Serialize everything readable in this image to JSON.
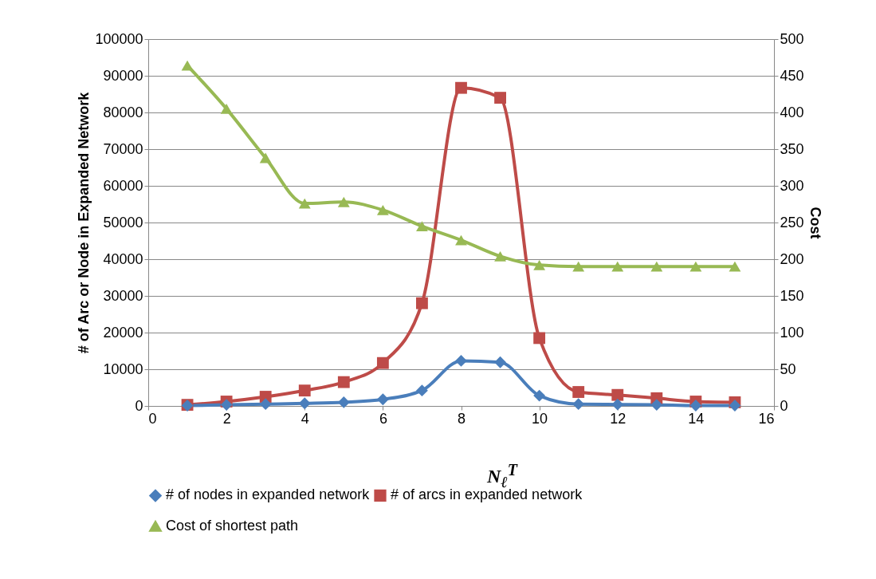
{
  "chart_data": {
    "type": "line",
    "xlabel": "N$_{ℓ}$$^{T}$",
    "ylabel": "# of Arc or Node in Expanded Network",
    "y2label": "Cost",
    "x": [
      1,
      2,
      3,
      4,
      5,
      6,
      7,
      8,
      9,
      10,
      11,
      12,
      13,
      14,
      15
    ],
    "xlim": [
      0,
      16
    ],
    "xticks": [
      0,
      2,
      4,
      6,
      8,
      10,
      12,
      14,
      16
    ],
    "ylim": [
      0,
      100000
    ],
    "yticks": [
      0,
      10000,
      20000,
      30000,
      40000,
      50000,
      60000,
      70000,
      80000,
      90000,
      100000
    ],
    "y2lim": [
      0,
      500
    ],
    "y2ticks": [
      0,
      50,
      100,
      150,
      200,
      250,
      300,
      350,
      400,
      450,
      500
    ],
    "grid": "y",
    "legend": "bottom",
    "series": [
      {
        "name": "# of nodes in expanded network",
        "color": "#4a7ebb",
        "marker": "diamond",
        "values": [
          100,
          300,
          500,
          700,
          1000,
          1800,
          4200,
          12300,
          11900,
          2800,
          500,
          400,
          300,
          100,
          100
        ]
      },
      {
        "name": "# of arcs in expanded network",
        "color": "#be4b48",
        "marker": "square",
        "values": [
          300,
          1200,
          2500,
          4200,
          6500,
          11700,
          28000,
          86700,
          84000,
          18500,
          3800,
          3000,
          2100,
          1200,
          1000
        ]
      },
      {
        "name": "Cost of shortest path",
        "color": "#98b954",
        "marker": "triangle",
        "axis": "y2",
        "values": [
          464,
          405,
          338,
          276,
          278,
          267,
          245,
          226,
          204,
          192,
          190,
          190,
          190,
          190,
          190
        ]
      }
    ]
  }
}
